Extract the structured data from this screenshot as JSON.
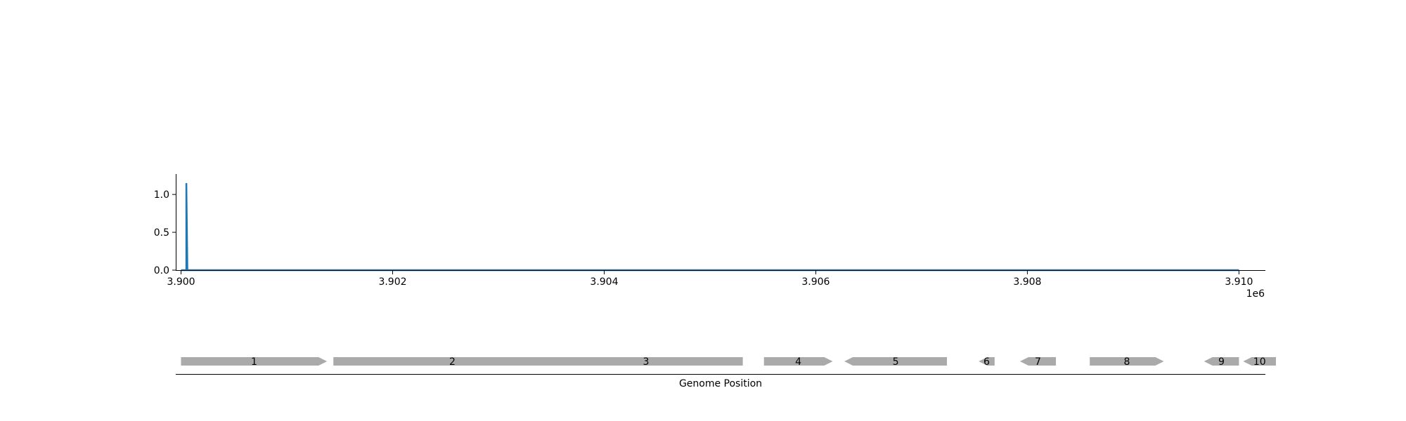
{
  "chart_data": [
    {
      "type": "line",
      "title": "",
      "xlabel": "",
      "ylabel": "",
      "x_offset_label": "1e6",
      "xlim": [
        3.89995,
        3.91025
      ],
      "ylim": [
        0,
        1.27
      ],
      "xticks": [
        3.9,
        3.902,
        3.904,
        3.906,
        3.908,
        3.91
      ],
      "xtick_labels": [
        "3.900",
        "3.902",
        "3.904",
        "3.906",
        "3.908",
        "3.910"
      ],
      "yticks": [
        0.0,
        0.5,
        1.0
      ],
      "ytick_labels": [
        "0.0",
        "0.5",
        "1.0"
      ],
      "grid": false,
      "color": "#1f77b4",
      "series": [
        {
          "x": [
            3.9,
            3.90005,
            3.90005,
            3.90006,
            3.91
          ],
          "y": [
            0,
            0,
            1.15,
            0,
            0
          ]
        }
      ]
    },
    {
      "type": "gene-track",
      "xlabel": "Genome Position",
      "xlim": [
        3.89995,
        3.91025
      ],
      "color": "#aaaaaa",
      "genes": [
        {
          "label": "1",
          "start": 3.9,
          "end": 3.90138,
          "strand": "+"
        },
        {
          "label": "2",
          "start": 3.90144,
          "end": 3.90369,
          "strand": "+"
        },
        {
          "label": "3",
          "start": 3.90348,
          "end": 3.90531,
          "strand": "-"
        },
        {
          "label": "4",
          "start": 3.90551,
          "end": 3.90616,
          "strand": "+"
        },
        {
          "label": "5",
          "start": 3.90627,
          "end": 3.90724,
          "strand": "-"
        },
        {
          "label": "6",
          "start": 3.90754,
          "end": 3.90769,
          "strand": "-"
        },
        {
          "label": "7",
          "start": 3.90793,
          "end": 3.90827,
          "strand": "-"
        },
        {
          "label": "8",
          "start": 3.90859,
          "end": 3.90929,
          "strand": "+"
        },
        {
          "label": "9",
          "start": 3.90967,
          "end": 3.91,
          "strand": "-"
        },
        {
          "label": "10",
          "start": 3.91004,
          "end": 3.91035,
          "strand": "-"
        }
      ]
    }
  ]
}
